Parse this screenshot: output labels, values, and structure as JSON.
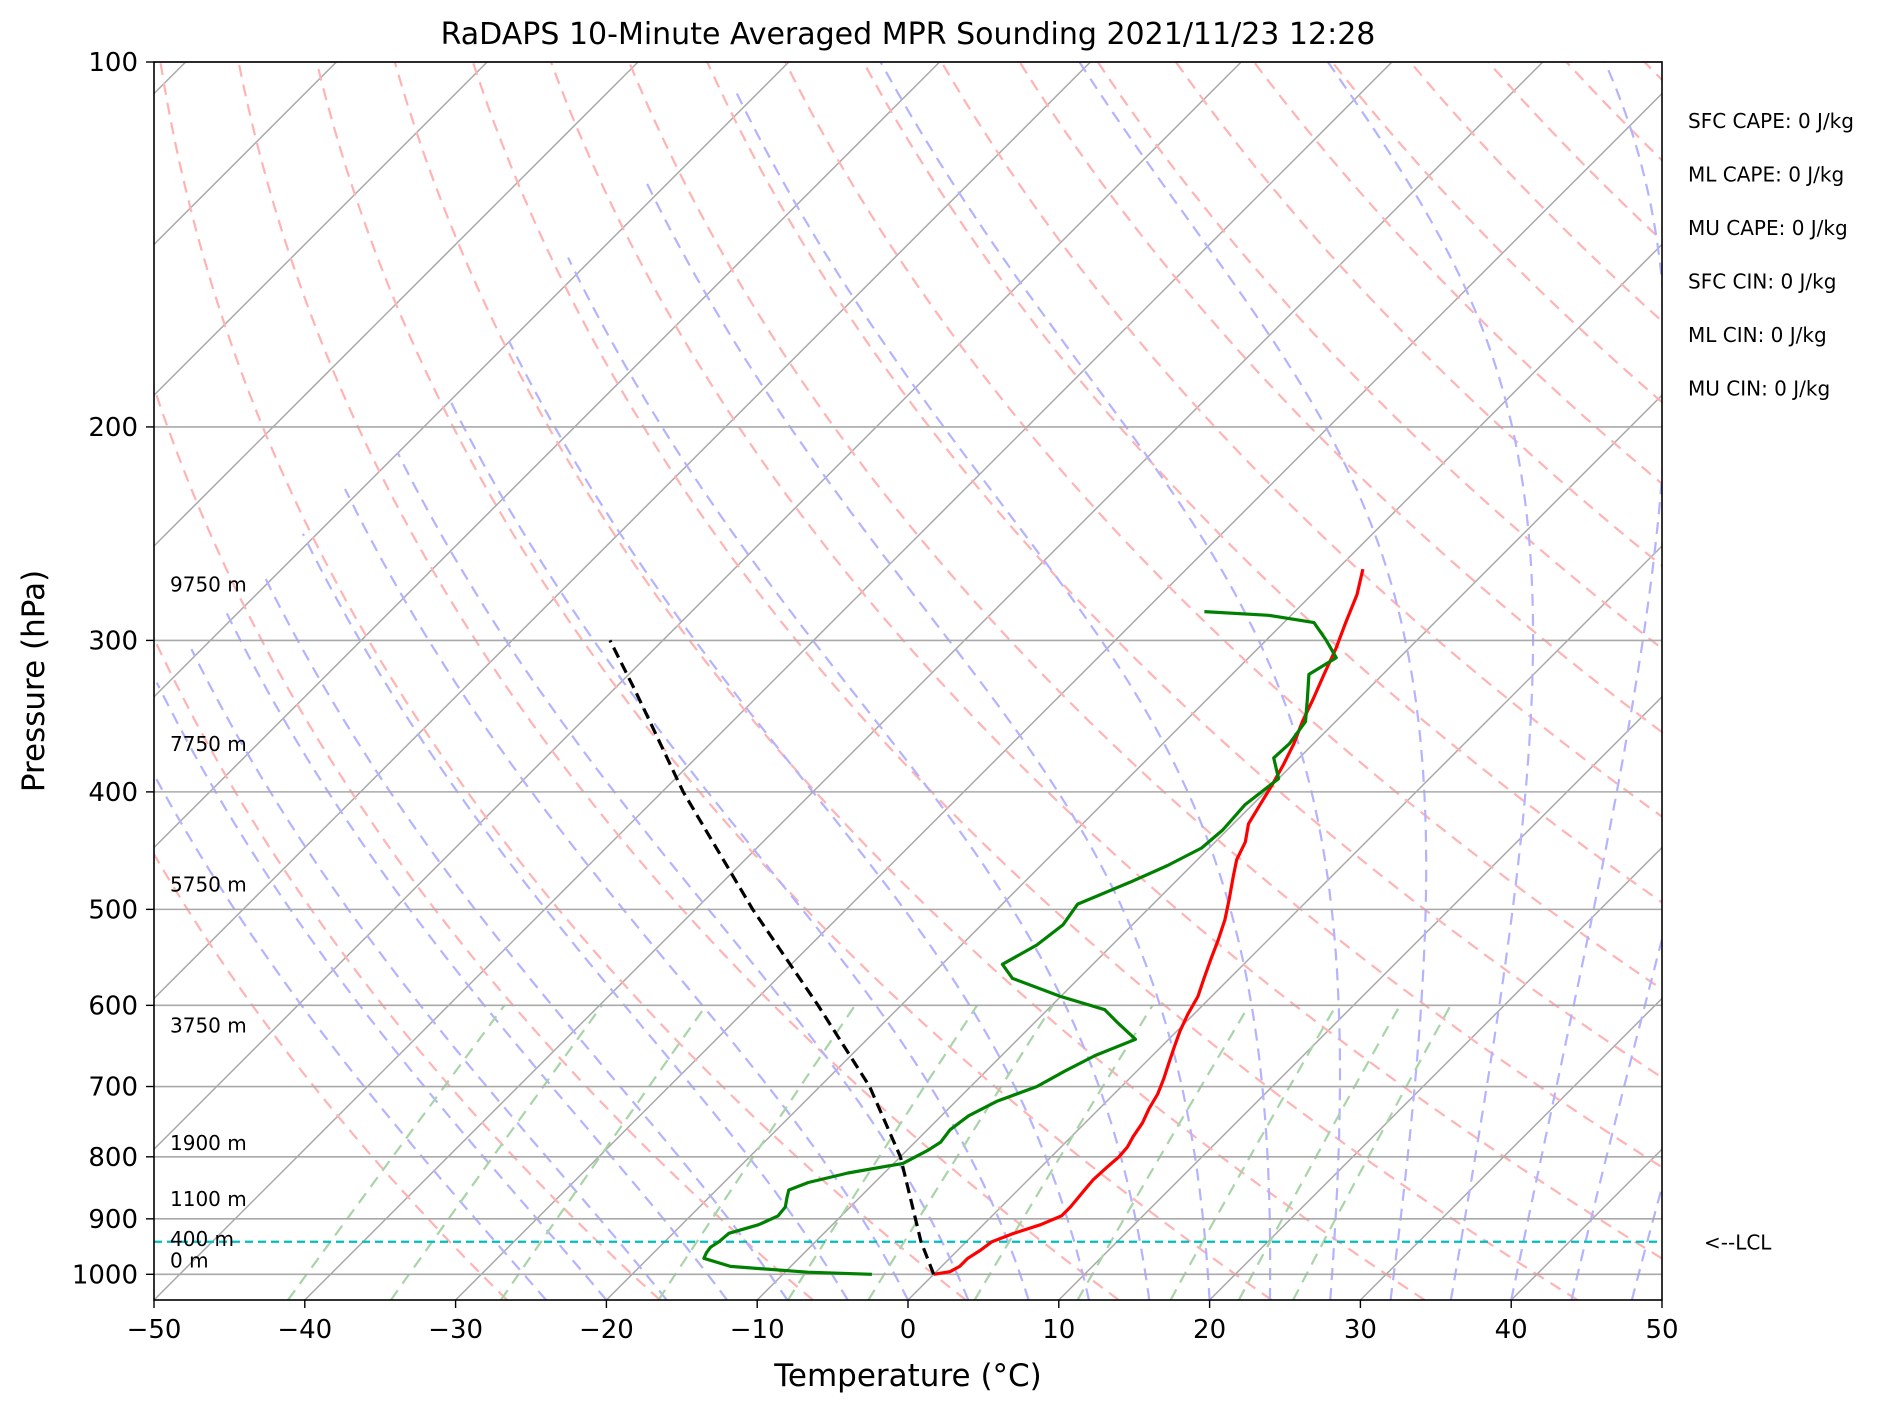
{
  "chart_data": {
    "type": "line",
    "title": "RaDAPS 10-Minute Averaged MPR Sounding 2021/11/23 12:28",
    "xlabel": "Temperature (°C)",
    "ylabel": "Pressure (hPa)",
    "xlim": [
      -50,
      50
    ],
    "ylim": [
      1050,
      100
    ],
    "y_scale": "log",
    "xticks": [
      -50,
      -40,
      -30,
      -20,
      -10,
      0,
      10,
      20,
      30,
      40,
      50
    ],
    "xtick_labels": [
      "−50",
      "−40",
      "−30",
      "−20",
      "−10",
      "0",
      "10",
      "20",
      "30",
      "40",
      "50"
    ],
    "yticks": [
      100,
      200,
      300,
      400,
      500,
      600,
      700,
      800,
      900,
      1000
    ],
    "ytick_labels": [
      "100",
      "200",
      "300",
      "400",
      "500",
      "600",
      "700",
      "800",
      "900",
      "1000"
    ],
    "grid": true,
    "series": [
      {
        "role": "temperature",
        "color": "#ff0000",
        "points": [
          [
            1000,
            0.0
          ],
          [
            995,
            0.9
          ],
          [
            985,
            1.2
          ],
          [
            970,
            1.2
          ],
          [
            955,
            1.5
          ],
          [
            940,
            1.7
          ],
          [
            925,
            2.6
          ],
          [
            910,
            3.8
          ],
          [
            895,
            4.6
          ],
          [
            880,
            4.6
          ],
          [
            865,
            4.5
          ],
          [
            850,
            4.4
          ],
          [
            835,
            4.3
          ],
          [
            815,
            4.4
          ],
          [
            800,
            4.5
          ],
          [
            785,
            4.4
          ],
          [
            770,
            4.1
          ],
          [
            750,
            3.8
          ],
          [
            730,
            3.3
          ],
          [
            710,
            2.9
          ],
          [
            690,
            2.3
          ],
          [
            670,
            1.6
          ],
          [
            650,
            0.9
          ],
          [
            630,
            0.2
          ],
          [
            610,
            -0.4
          ],
          [
            590,
            -0.9
          ],
          [
            570,
            -1.7
          ],
          [
            550,
            -2.5
          ],
          [
            530,
            -3.3
          ],
          [
            510,
            -4.2
          ],
          [
            490,
            -5.3
          ],
          [
            470,
            -6.5
          ],
          [
            455,
            -7.4
          ],
          [
            440,
            -8.0
          ],
          [
            425,
            -9.0
          ],
          [
            410,
            -9.5
          ],
          [
            395,
            -10.0
          ],
          [
            380,
            -10.6
          ],
          [
            365,
            -11.3
          ],
          [
            350,
            -12.2
          ],
          [
            335,
            -13.0
          ],
          [
            320,
            -13.9
          ],
          [
            305,
            -14.8
          ],
          [
            290,
            -15.9
          ],
          [
            275,
            -17.0
          ],
          [
            262,
            -18.3
          ]
        ]
      },
      {
        "role": "dewpoint",
        "color": "#008000",
        "points": [
          [
            1000,
            -4.1
          ],
          [
            996,
            -8.5
          ],
          [
            985,
            -14.0
          ],
          [
            970,
            -16.3
          ],
          [
            960,
            -16.5
          ],
          [
            950,
            -16.6
          ],
          [
            940,
            -16.4
          ],
          [
            925,
            -16.3
          ],
          [
            910,
            -14.9
          ],
          [
            895,
            -14.2
          ],
          [
            880,
            -14.3
          ],
          [
            865,
            -14.8
          ],
          [
            852,
            -15.2
          ],
          [
            840,
            -14.4
          ],
          [
            825,
            -12.4
          ],
          [
            810,
            -9.4
          ],
          [
            800,
            -9.0
          ],
          [
            790,
            -8.6
          ],
          [
            778,
            -8.3
          ],
          [
            760,
            -8.5
          ],
          [
            740,
            -8.2
          ],
          [
            720,
            -7.3
          ],
          [
            700,
            -5.6
          ],
          [
            680,
            -4.8
          ],
          [
            660,
            -3.8
          ],
          [
            640,
            -2.2
          ],
          [
            620,
            -4.5
          ],
          [
            605,
            -6.2
          ],
          [
            590,
            -10.0
          ],
          [
            570,
            -14.4
          ],
          [
            555,
            -16.0
          ],
          [
            535,
            -15.0
          ],
          [
            515,
            -14.6
          ],
          [
            495,
            -15.0
          ],
          [
            475,
            -13.0
          ],
          [
            460,
            -11.6
          ],
          [
            445,
            -10.5
          ],
          [
            430,
            -10.3
          ],
          [
            410,
            -10.5
          ],
          [
            390,
            -10.0
          ],
          [
            375,
            -11.7
          ],
          [
            365,
            -11.6
          ],
          [
            350,
            -12.0
          ],
          [
            335,
            -13.4
          ],
          [
            320,
            -14.9
          ],
          [
            310,
            -14.2
          ],
          [
            300,
            -16.0
          ],
          [
            290,
            -18.0
          ],
          [
            286,
            -21.5
          ],
          [
            284,
            -26.0
          ]
        ]
      },
      {
        "role": "parcel",
        "color": "#000000",
        "style": "dashed",
        "points": [
          [
            1000,
            0.0
          ],
          [
            940,
            -3.0
          ],
          [
            800,
            -10.0
          ],
          [
            700,
            -16.7
          ],
          [
            600,
            -25.5
          ],
          [
            500,
            -36.2
          ],
          [
            400,
            -48.6
          ],
          [
            330,
            -58.5
          ],
          [
            300,
            -63.5
          ]
        ]
      }
    ],
    "lcl": {
      "pressure": 940,
      "label": "<--LCL",
      "color": "#00bfbf"
    },
    "height_labels": [
      {
        "pressure": 1000,
        "label": "0 m"
      },
      {
        "pressure": 960,
        "label": "400 m"
      },
      {
        "pressure": 890,
        "label": "1100 m"
      },
      {
        "pressure": 800,
        "label": "1900 m"
      },
      {
        "pressure": 640,
        "label": "3750 m"
      },
      {
        "pressure": 490,
        "label": "5750 m"
      },
      {
        "pressure": 375,
        "label": "7750 m"
      },
      {
        "pressure": 277,
        "label": "9750 m"
      }
    ],
    "annotations": [
      "SFC CAPE: 0 J/kg",
      "ML CAPE: 0 J/kg",
      "MU CAPE: 0 J/kg",
      "SFC CIN: 0 J/kg",
      "ML CIN: 0 J/kg",
      "MU CIN: 0 J/kg"
    ],
    "reference_lines": {
      "isotherm_color": "#a9a9a9",
      "dry_adiabat_color": "#ffb3b3",
      "moist_adiabat_color": "#b3b3ff",
      "mixing_ratio_color": "#a8d5a8"
    }
  }
}
